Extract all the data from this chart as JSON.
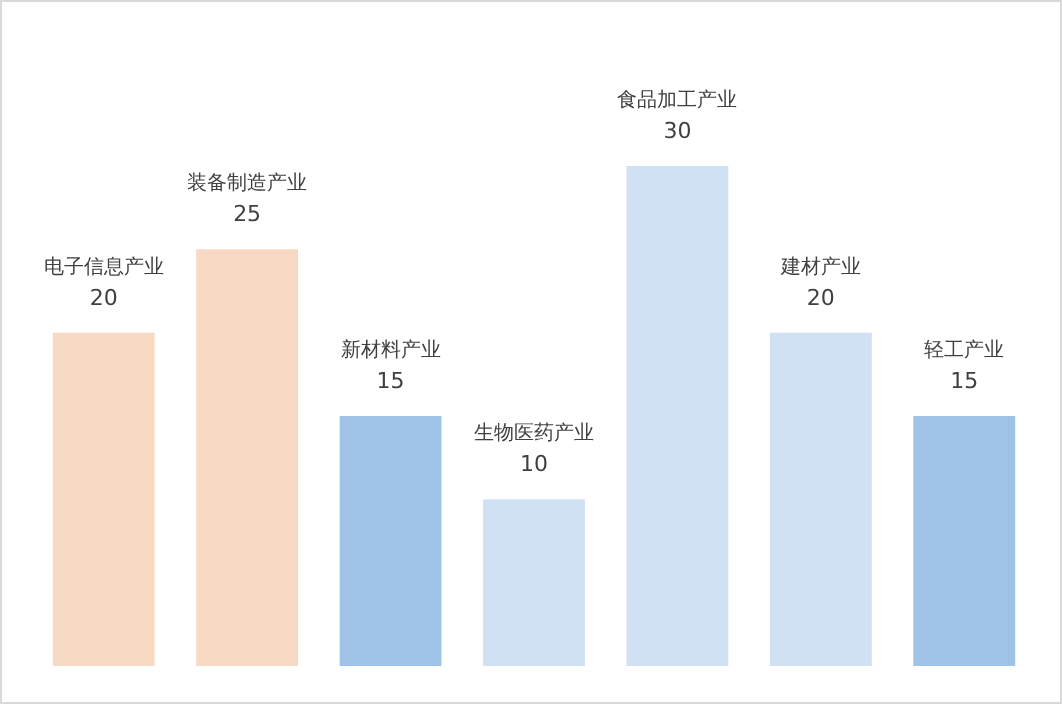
{
  "chart_data": {
    "type": "bar",
    "categories": [
      null,
      null,
      null,
      null,
      null,
      null,
      null
    ],
    "values": [
      20,
      25,
      15,
      10,
      30,
      20,
      15
    ],
    "value_labels": [
      "电子信息产业\n20",
      "装备制造产业\n25",
      "新材料产业\n15",
      "生物医药产业\n10",
      "食品加工产业\n30",
      "建材产业\n20",
      "轻工产业\n15"
    ],
    "colors": [
      "#f8d9c4",
      "#f8d9c4",
      "#9fc3e6",
      "#cfe1f2",
      "#cfe1f2",
      "#cfe1f2",
      "#9fc3e6"
    ]
  }
}
